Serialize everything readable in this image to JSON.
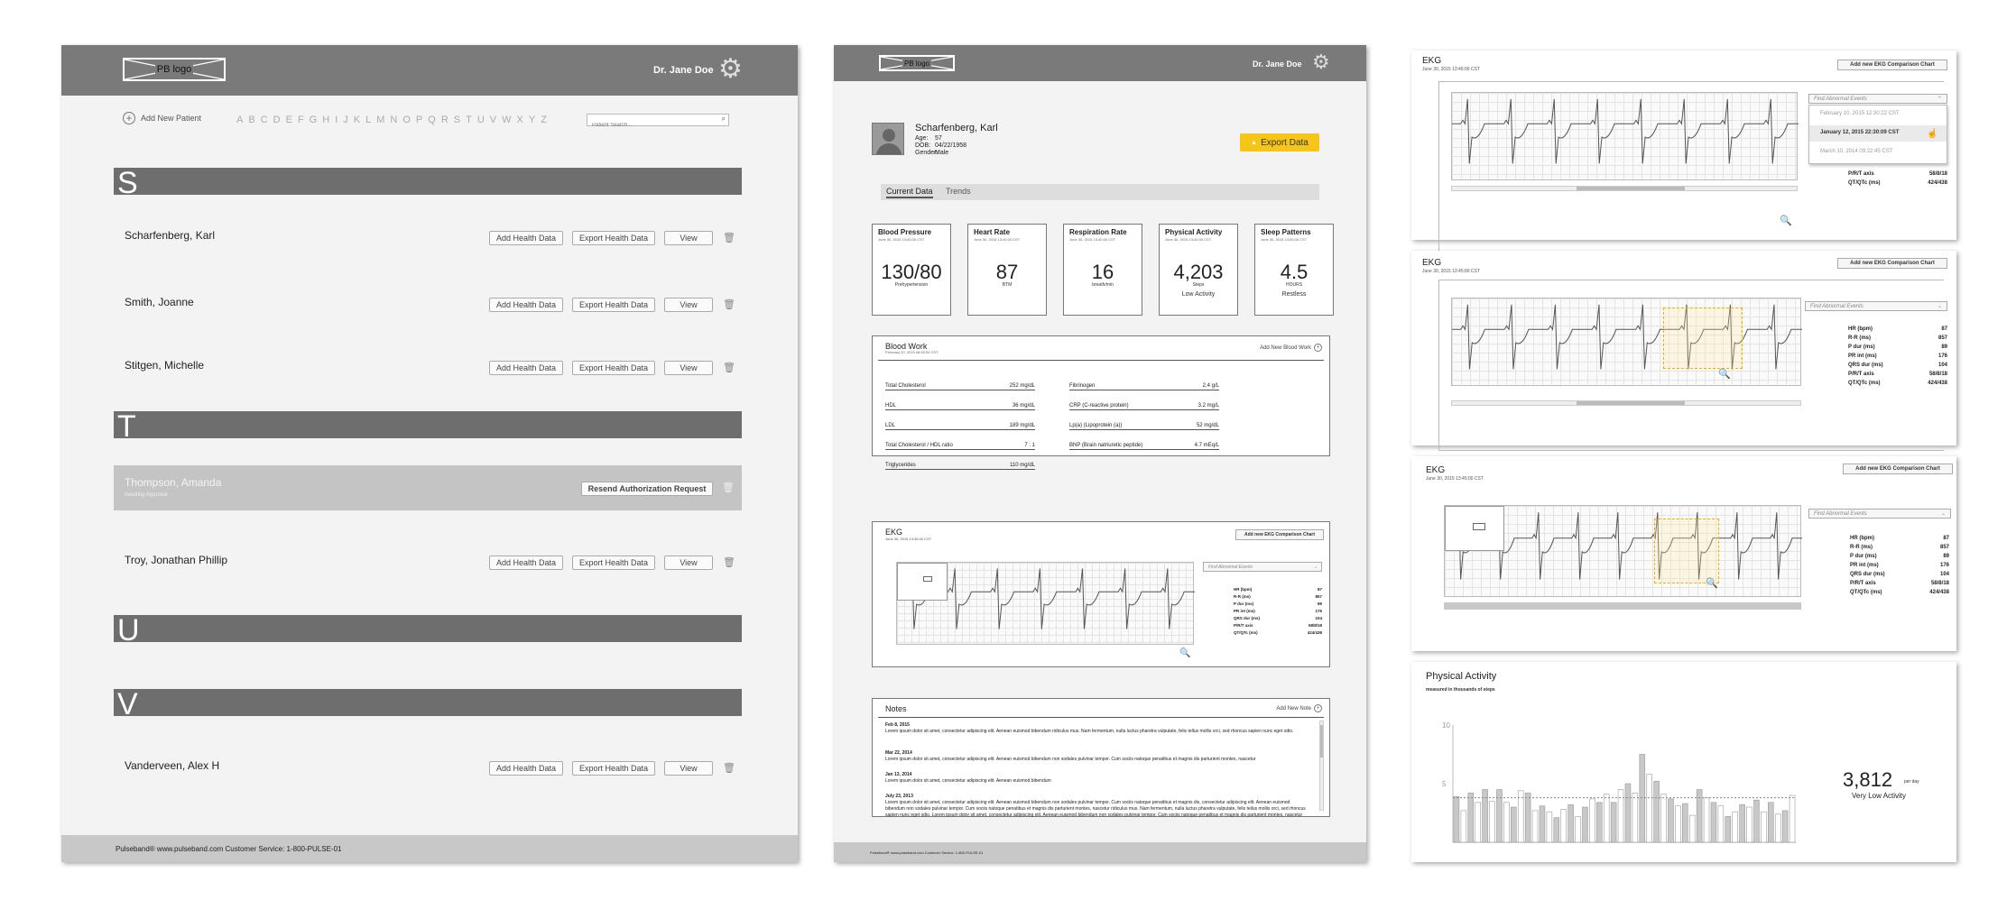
{
  "panel1": {
    "logo": "PB logo",
    "doctor": "Dr. Jane Doe",
    "add_patient": "Add New Patient",
    "alphabet": [
      "A",
      "B",
      "C",
      "D",
      "E",
      "F",
      "G",
      "H",
      "I",
      "J",
      "K",
      "L",
      "M",
      "N",
      "O",
      "P",
      "Q",
      "R",
      "S",
      "T",
      "U",
      "V",
      "W",
      "X",
      "Y",
      "Z"
    ],
    "search_placeholder": "Patient Search...",
    "sections": [
      "S",
      "T",
      "U",
      "V"
    ],
    "patients": [
      {
        "name": "Scharfenberg,  Karl"
      },
      {
        "name": "Smith, Joanne"
      },
      {
        "name": "Stitgen, Michelle"
      },
      {
        "name": "Thompson, Amanda",
        "status": "Awaiting Approval",
        "action": "Resend Authorization Request"
      },
      {
        "name": "Troy, Jonathan Phillip"
      },
      {
        "name": "Vanderveen, Alex H"
      }
    ],
    "btn_add": "Add Health Data",
    "btn_export": "Export Health Data",
    "btn_view": "View",
    "footer": "Pulseband®   www.pulseband.com   Customer Service: 1-800-PULSE-01"
  },
  "panel2": {
    "logo": "PB logo",
    "doctor": "Dr. Jane Doe",
    "patient": {
      "name": "Scharfenberg, Karl",
      "age_label": "Age:",
      "age": "57",
      "dob_label": "DOB:",
      "dob": "04/22/1958",
      "gender_label": "Gender:",
      "gender": "Male"
    },
    "export_label": "Export Data",
    "tabs": [
      "Current Data",
      "Trends"
    ],
    "vitals": [
      {
        "title": "Blood Pressure",
        "sub": "June 30, 2015 13:40:00 CST",
        "value": "130/80",
        "unit": "Prehypertension",
        "note": ""
      },
      {
        "title": "Heart Rate",
        "sub": "June 30, 2015 13:40:00 CST",
        "value": "87",
        "unit": "BTM",
        "note": ""
      },
      {
        "title": "Respiration Rate",
        "sub": "June 30, 2015 13:40:00 CST",
        "value": "16",
        "unit": "breath/min",
        "note": ""
      },
      {
        "title": "Physical Activity",
        "sub": "June 30, 2015 13:40:00 CST",
        "value": "4,203",
        "unit": "Steps",
        "note": "Low Activity"
      },
      {
        "title": "Sleep Patterns",
        "sub": "June 30, 2015 13:40:00 CST",
        "value": "4.5",
        "unit": "HOURS",
        "note": "Restless"
      }
    ],
    "bloodwork": {
      "title": "Blood Work",
      "sub": "February 20, 2015 08:45:00 CST",
      "add": "Add New Blood Work",
      "left": [
        [
          "Total Cholesterol",
          "252 mg/dL"
        ],
        [
          "HDL",
          "36 mg/dL"
        ],
        [
          "LDL",
          "189 mg/dL"
        ],
        [
          "Total Cholesterol / HDL ratio",
          "7 : 1"
        ],
        [
          "Triglycerides",
          "110 mg/dL"
        ]
      ],
      "right": [
        [
          "Fibrinogen",
          "2.4 g/L"
        ],
        [
          "CRP (C-reactive protein)",
          "3.2 mg/L"
        ],
        [
          "Lp(a) (Lipoprotein (a))",
          "52 mg/dL"
        ],
        [
          "BNP (Brain natriuretic peptide)",
          "4.7 mEq/L"
        ]
      ]
    },
    "ekg": {
      "title": "EKG",
      "sub": "June 30, 2015 13:46:00 CST",
      "btn": "Add new EKG Comparison Chart",
      "dropdown": "Find Abnormal Events"
    },
    "notes": {
      "title": "Notes",
      "add": "Add New Note",
      "items": [
        {
          "date": "Feb 8, 2015",
          "text": "Lorem ipsum dolor sit amet, consectetur adipiscing elit. Aenean euismod bibendum ridiculus mus. Nam fermentum, nulla luctus pharetra vulputate, felis tellus mollis orci, sed rhoncus sapien nunc eget odio."
        },
        {
          "date": "Mar 22, 2014",
          "text": "Lorem ipsum dolor sit amet, consectetur adipiscing elit. Aenean euismod bibendum non sodales pulvinar tempor. Cum sociis natoque penatibus et magnis dis parturient montes, nascetur"
        },
        {
          "date": "Jan 13, 2014",
          "text": "Lorem ipsum dolor sit amet, consectetur adipiscing elit. Aenean euismod bibendum"
        },
        {
          "date": "July 23, 2013",
          "text": "Lorem ipsum dolor sit amet, consectetur adipiscing elit. Aenean euismod bibendum non sodales pulvinar tempor. Cum sociis natoque penatibus et magnis dis, consectetur adipiscing elit. Aenean euismod bibendum non sodales pulvinar tempor. Cum sociis natoque penatibus et magnis dis parturient montes, nascetur ridiculus mus. Nam fermentum, nulla luctus pharetra vulputate, felis tellus mollis orci, sed rhoncus sapien nunc eget odio. Lorem ipsum dolor sit amet, consectetur adipiscing elit. Aenean euismod bibendum non sodales pulvinar tempor. Cum sociis natoque penatibus et magnis dis parturient montes, nascetur"
        }
      ]
    },
    "footer": "Pulseband®   www.pulseband.com   Customer Service: 1-800-PULSE-01"
  },
  "panel3": {
    "ekg1": {
      "title": "EKG",
      "sub": "June 30, 2015 13:46:00 CST",
      "btn": "Add new EKG Comparison Chart",
      "dropdown": "Find Abnormal Events",
      "options": [
        "February 10, 2015  12:30:22  CST",
        "January 12, 2015  22:30:09  CST",
        "March 10, 2014  09:22:45  CST"
      ]
    },
    "ekg2": {
      "title": "EKG",
      "sub": "June 30, 2015 13:45:00 CST",
      "btn": "Add new EKG Comparison Chart",
      "dropdown": "Find Abnormal Events"
    },
    "ekg3": {
      "title": "EKG",
      "sub": "June 30, 2015 13:45:00 CST",
      "btn": "Add new EKG Comparison Chart",
      "dropdown": "Find Abnormal Events"
    },
    "stats": [
      [
        "HR (bpm)",
        "87"
      ],
      [
        "R-R (ms)",
        "857"
      ],
      [
        "P dur (ms)",
        "89"
      ],
      [
        "PR int (ms)",
        "176"
      ],
      [
        "QRS dur (ms)",
        "104"
      ],
      [
        "P/R/T axis",
        "58/8/18"
      ],
      [
        "QT/QTc (ms)",
        "424/438"
      ]
    ],
    "activity": {
      "title": "Physical Activity",
      "sub": "measured in thousands of steps",
      "value": "3,812",
      "unit": "per day",
      "label": "Very Low Activity",
      "y_ticks": [
        "10",
        "5"
      ]
    }
  },
  "chart_data": {
    "type": "bar",
    "title": "Physical Activity",
    "ylabel": "measured in thousands of steps",
    "ylim": [
      0,
      10
    ],
    "y_ticks": [
      5,
      10
    ],
    "values": [
      3.9,
      2.7,
      4.2,
      3.4,
      4.5,
      3.5,
      4.5,
      3.4,
      3.0,
      4.4,
      4.2,
      2.7,
      3.1,
      2.6,
      2.1,
      2.8,
      3.2,
      2.2,
      3.0,
      3.7,
      3.4,
      4.1,
      3.4,
      4.5,
      5.0,
      4.2,
      7.5,
      5.8,
      5.2,
      4.1,
      3.7,
      3.1,
      3.3,
      2.3,
      4.5,
      3.8,
      3.4,
      3.1,
      2.2,
      2.6,
      3.2,
      3.0,
      3.6,
      2.6,
      3.4,
      2.4,
      2.7,
      4.0
    ]
  }
}
